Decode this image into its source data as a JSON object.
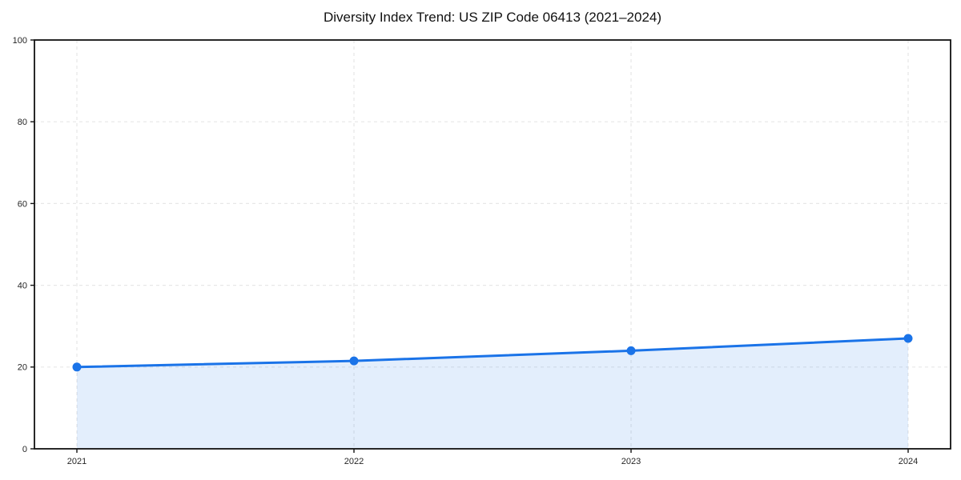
{
  "chart_data": {
    "type": "area",
    "title": "Diversity Index Trend: US ZIP Code 06413 (2021–2024)",
    "series_name": "Diversity Index",
    "x": [
      2021,
      2022,
      2023,
      2024
    ],
    "values": [
      20.0,
      21.5,
      24.0,
      27.0
    ],
    "xlabel": "",
    "ylabel": "",
    "ylim": [
      0,
      100
    ],
    "yticks": [
      0,
      20,
      40,
      60,
      80,
      100
    ],
    "xtick_labels": [
      "2021",
      "2022",
      "2023",
      "2024"
    ],
    "grid": "dashed",
    "legend": "none",
    "marker": "circle",
    "colors": {
      "line": "#1a73e8",
      "marker": "#1a73e8",
      "fill": "rgba(26,115,232,0.12)",
      "grid": "#e7e7e7",
      "frame": "#111111",
      "tick_label": "#262626",
      "title": "#111111",
      "background": "#ffffff"
    }
  }
}
